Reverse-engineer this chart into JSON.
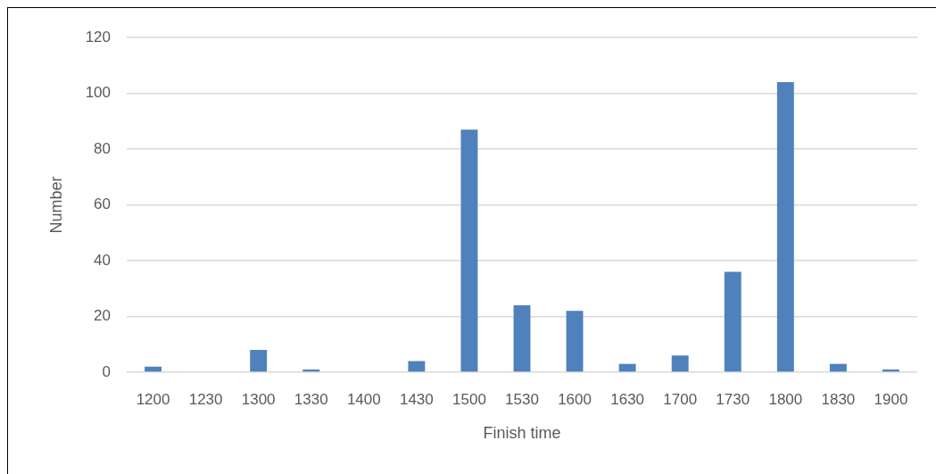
{
  "chart_data": {
    "type": "bar",
    "xlabel": "Finish time",
    "ylabel": "Number",
    "categories": [
      "1200",
      "1230",
      "1300",
      "1330",
      "1400",
      "1430",
      "1500",
      "1530",
      "1600",
      "1630",
      "1700",
      "1730",
      "1800",
      "1830",
      "1900"
    ],
    "values": [
      2,
      0,
      8,
      1,
      0,
      4,
      87,
      24,
      22,
      3,
      6,
      36,
      104,
      3,
      1
    ],
    "color": "#4f81bd",
    "ylim": [
      0,
      120
    ],
    "yticks": [
      0,
      20,
      40,
      60,
      80,
      100,
      120
    ],
    "grid": "y"
  }
}
